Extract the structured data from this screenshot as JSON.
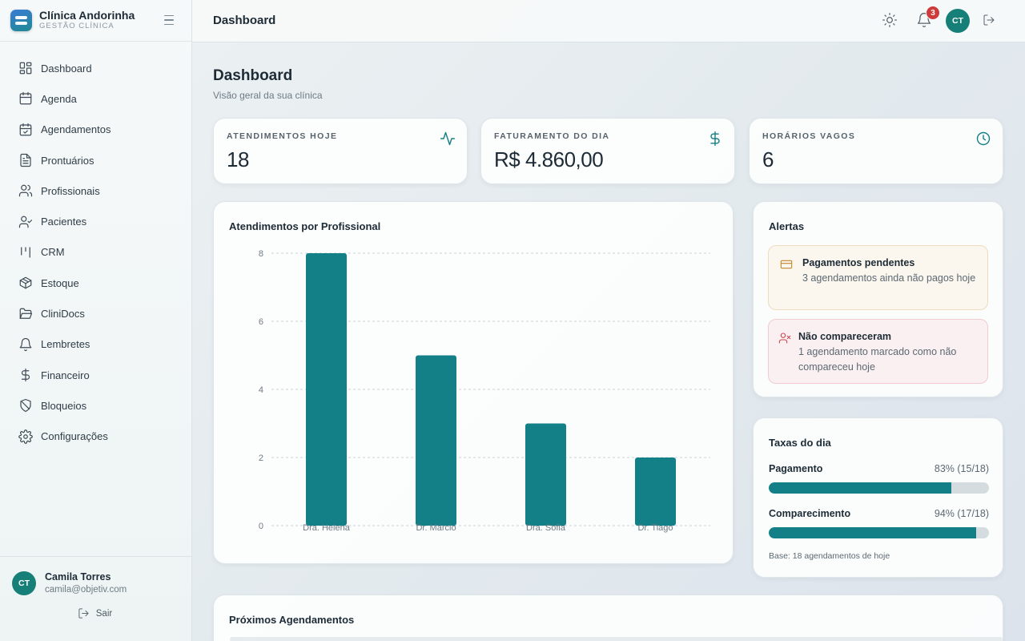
{
  "brand": {
    "name": "Clínica Andorinha",
    "subtitle": "GESTÃO CLÍNICA"
  },
  "sidebar": {
    "items": [
      {
        "label": "Dashboard",
        "icon": "grid-icon"
      },
      {
        "label": "Agenda",
        "icon": "calendar-icon"
      },
      {
        "label": "Agendamentos",
        "icon": "calendar-check-icon"
      },
      {
        "label": "Prontuários",
        "icon": "file-text-icon"
      },
      {
        "label": "Profissionais",
        "icon": "users-icon"
      },
      {
        "label": "Pacientes",
        "icon": "user-check-icon"
      },
      {
        "label": "CRM",
        "icon": "kanban-icon"
      },
      {
        "label": "Estoque",
        "icon": "package-icon"
      },
      {
        "label": "CliniDocs",
        "icon": "folder-open-icon"
      },
      {
        "label": "Lembretes",
        "icon": "bell-icon"
      },
      {
        "label": "Financeiro",
        "icon": "dollar-icon"
      },
      {
        "label": "Bloqueios",
        "icon": "shield-off-icon"
      },
      {
        "label": "Configurações",
        "icon": "gear-icon"
      }
    ]
  },
  "user": {
    "initials": "CT",
    "name": "Camila Torres",
    "email": "camila@objetiv.com",
    "logout_label": "Sair"
  },
  "topbar": {
    "title": "Dashboard",
    "notification_count": "3",
    "avatar_initials": "CT"
  },
  "page": {
    "title": "Dashboard",
    "subtitle": "Visão geral da sua clínica"
  },
  "stats": [
    {
      "label": "ATENDIMENTOS HOJE",
      "value": "18",
      "icon": "activity-icon"
    },
    {
      "label": "FATURAMENTO DO DIA",
      "value": "R$ 4.860,00",
      "icon": "dollar-icon"
    },
    {
      "label": "HORÁRIOS VAGOS",
      "value": "6",
      "icon": "clock-icon"
    }
  ],
  "chart_card": {
    "title": "Atendimentos por Profissional"
  },
  "chart_data": {
    "type": "bar",
    "categories": [
      "Dra. Helena",
      "Dr. Márcio",
      "Dra. Sofia",
      "Dr. Tiago"
    ],
    "values": [
      8,
      5,
      3,
      2
    ],
    "ylim": [
      0,
      8
    ],
    "yticks": [
      0,
      2,
      4,
      6,
      8
    ],
    "grid": true,
    "color": "#137f87"
  },
  "alerts": {
    "title": "Alertas",
    "items": [
      {
        "title": "Pagamentos pendentes",
        "text": "3 agendamentos ainda não pagos hoje",
        "icon": "credit-card-icon",
        "color": "#c2852c"
      },
      {
        "title": "Não compareceram",
        "text": "1 agendamento marcado como não compareceu hoje",
        "icon": "user-x-icon",
        "color": "#c9454f"
      }
    ]
  },
  "rates": {
    "title": "Taxas do dia",
    "items": [
      {
        "label": "Pagamento",
        "value": "83% (15/18)",
        "fraction": 0.83
      },
      {
        "label": "Comparecimento",
        "value": "94% (17/18)",
        "fraction": 0.94
      }
    ],
    "base_text": "Base: 18 agendamentos de hoje"
  },
  "upcoming": {
    "title": "Próximos Agendamentos"
  }
}
